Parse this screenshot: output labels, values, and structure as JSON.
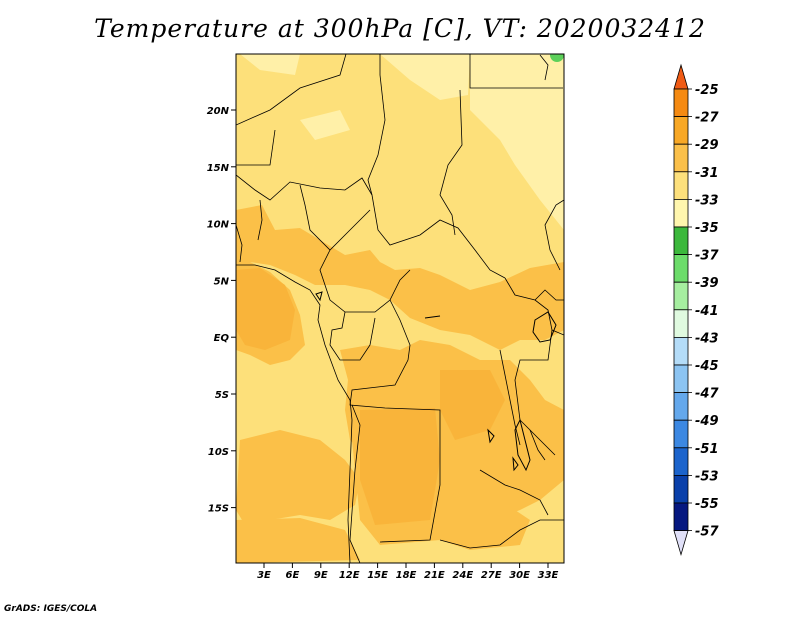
{
  "title": "Temperature at 300hPa [C], VT: 2020032412",
  "credit": "GrADS: IGES/COLA",
  "map": {
    "lon_labels": [
      "3E",
      "6E",
      "9E",
      "12E",
      "15E",
      "18E",
      "21E",
      "24E",
      "27E",
      "30E",
      "33E"
    ],
    "lat_labels": [
      "20N",
      "15N",
      "10N",
      "5N",
      "EQ",
      "5S",
      "10S",
      "15S"
    ],
    "lon_range": [
      0,
      34.5
    ],
    "lat_range": [
      -20,
      24.5
    ],
    "colors": {
      "base": "#fde07a",
      "light": "#fff0a8",
      "warm": "#fbc048",
      "warmer": "#f9b43a",
      "green": "#5cd05a"
    }
  },
  "colorbar": {
    "labels": [
      "-25",
      "-27",
      "-29",
      "-31",
      "-33",
      "-35",
      "-37",
      "-39",
      "-41",
      "-43",
      "-45",
      "-47",
      "-49",
      "-51",
      "-53",
      "-55",
      "-57"
    ],
    "colors": [
      "#f05b14",
      "#f58a12",
      "#f8a826",
      "#fbc04a",
      "#fde07c",
      "#fff6ae",
      "#3cb83c",
      "#6cdc6a",
      "#a6eea0",
      "#e0fae0",
      "#b4dcf8",
      "#8cc4f2",
      "#64a8ec",
      "#3c88e2",
      "#1c64cc",
      "#0a40aa",
      "#061880",
      "#e0e0f8"
    ]
  }
}
